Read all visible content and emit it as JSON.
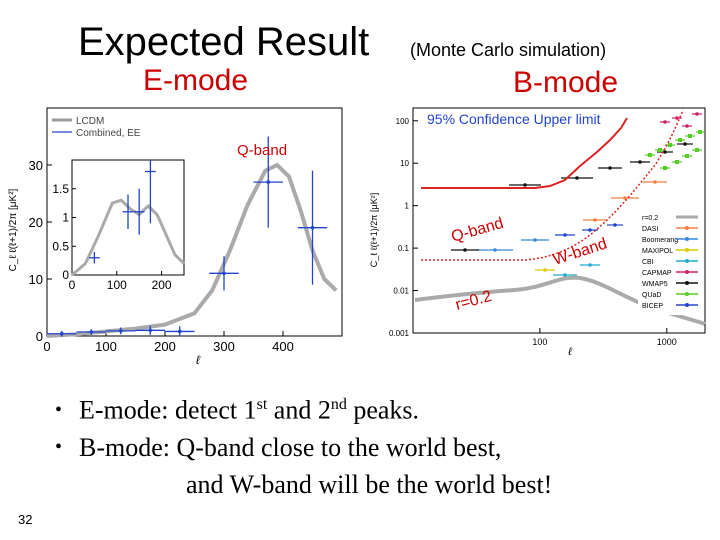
{
  "slide": {
    "title": "Expected Result",
    "title_sub": "(Monte Carlo simulation)",
    "emode_label": "E-mode",
    "bmode_label": "B-mode",
    "page_number": "32"
  },
  "bullets": [
    {
      "pre": "E-mode: detect 1",
      "sup1": "st",
      "mid": " and 2",
      "sup2": "nd",
      "post": " peaks."
    },
    {
      "text": "B-mode: Q-band close to the world best,"
    },
    {
      "text": "and W-band will be the world best!"
    }
  ],
  "colors": {
    "heading_red": "#cc0000",
    "annotation_red": "#cc0000",
    "qband_blue": "#2244cc"
  },
  "chart_data": [
    {
      "type": "line",
      "title": "",
      "xlabel": "ℓ",
      "ylabel": "C_ℓ ℓ(ℓ+1)/2π [μK²]",
      "xlim": [
        0,
        500
      ],
      "ylim": [
        0,
        40
      ],
      "x_ticks": [
        "0",
        "100",
        "200",
        "300",
        "400"
      ],
      "y_ticks": [
        "0",
        "10",
        "20",
        "30"
      ],
      "legend": [
        "LCDM",
        "Combined, EE"
      ],
      "annotation": "Q-band",
      "series": [
        {
          "name": "LCDM",
          "x": [
            0,
            50,
            100,
            150,
            200,
            250,
            280,
            310,
            340,
            370,
            390,
            410,
            430,
            450,
            470,
            490
          ],
          "y": [
            0,
            0.3,
            0.8,
            1.3,
            2.0,
            4.0,
            8.0,
            15.0,
            23.0,
            29.0,
            30.0,
            28.0,
            22.0,
            15.0,
            10.0,
            8.0
          ]
        },
        {
          "name": "Combined, EE",
          "x": [
            25,
            75,
            125,
            175,
            225,
            300,
            375,
            450
          ],
          "y": [
            0.4,
            0.7,
            0.9,
            1.0,
            0.8,
            11.0,
            27.0,
            19.0
          ],
          "xerr": [
            25,
            25,
            25,
            25,
            25,
            25,
            25,
            25
          ],
          "yerr": [
            0.5,
            0.5,
            0.6,
            0.8,
            0.9,
            3.0,
            8.0,
            10.0
          ]
        }
      ],
      "inset": {
        "xlim": [
          0,
          250
        ],
        "ylim": [
          0,
          2
        ],
        "x_ticks": [
          "0",
          "100",
          "200"
        ],
        "y_ticks": [
          "0",
          "0.5",
          "1",
          "1.5"
        ],
        "points": {
          "x": [
            50,
            125,
            150,
            175
          ],
          "y": [
            0.3,
            1.1,
            1.1,
            1.8
          ],
          "xerr": [
            12,
            12,
            12,
            12
          ],
          "yerr": [
            0.1,
            0.3,
            0.4,
            0.9
          ]
        }
      }
    },
    {
      "type": "scatter",
      "title": "",
      "xlabel": "ℓ",
      "ylabel": "C_ℓ ℓ(ℓ+1)/2π [μK²]",
      "xscale": "log",
      "yscale": "log",
      "xlim": [
        10,
        2000
      ],
      "ylim": [
        0.001,
        200
      ],
      "x_ticks": [
        "100",
        "1000"
      ],
      "y_ticks": [
        "100",
        "10",
        "1",
        "0.1",
        "0.01",
        "0.001"
      ],
      "annotations": [
        "95% Confidence Upper limit",
        "Q-band",
        "W-band",
        "r=0.2"
      ],
      "legend": [
        "r=0.2",
        "DASI",
        "Boomerang",
        "MAXIPOL",
        "CBI",
        "CAPMAP",
        "WMAP5",
        "QUaD",
        "BICEP"
      ],
      "legend_colors": [
        "#aaaaaa",
        "#f08040",
        "#3388dd",
        "#ddcc00",
        "#22aacc",
        "#cc2266",
        "#111111",
        "#55cc22",
        "#2244cc"
      ],
      "series": [
        {
          "name": "Q-band",
          "x": [
            15,
            60,
            100,
            150
          ],
          "y": [
            0.5,
            0.5,
            1.0,
            3.5
          ]
        },
        {
          "name": "W-band",
          "x": [
            15,
            60,
            150,
            300,
            600,
            1000
          ],
          "y": [
            0.12,
            0.12,
            0.2,
            0.8,
            3.0,
            10.0
          ]
        },
        {
          "name": "r=0.2",
          "x": [
            10,
            50,
            80,
            120,
            200,
            400,
            800,
            1500
          ],
          "y": [
            0.02,
            0.01,
            0.015,
            0.03,
            0.02,
            0.008,
            0.004,
            0.002
          ]
        }
      ]
    }
  ]
}
